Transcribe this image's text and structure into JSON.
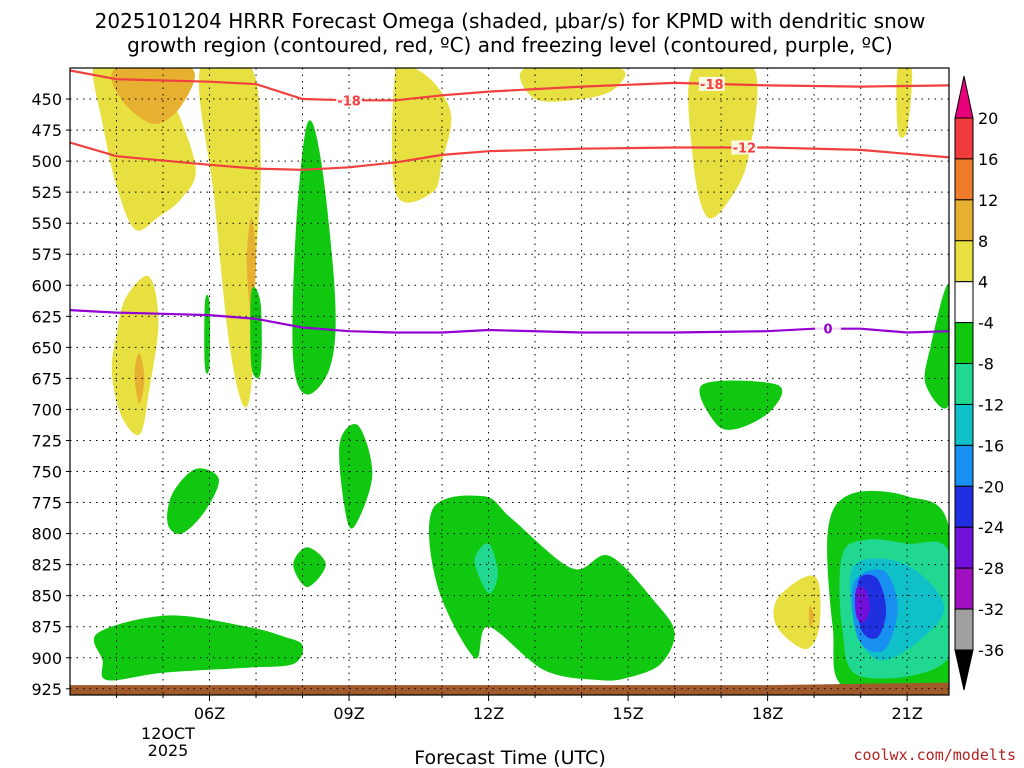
{
  "chart_data": {
    "type": "contour",
    "title_line1": "2025101204 HRRR Forecast Omega (shaded, μbar/s) for KPMD with dendritic snow",
    "title_line2": "growth region (contoured, red, ºC) and freezing level (contoured, purple, ºC)",
    "xlabel": "Forecast Time (UTC)",
    "x_tick_labels": [
      "06Z",
      "09Z",
      "12Z",
      "15Z",
      "18Z",
      "21Z"
    ],
    "x_ticks_hours": [
      6,
      9,
      12,
      15,
      18,
      21
    ],
    "xlim_hours": [
      3,
      21.9
    ],
    "date_label": [
      "12OCT",
      "2025"
    ],
    "ylabel": "",
    "y_levels_hpa": [
      450,
      475,
      500,
      525,
      550,
      575,
      600,
      625,
      650,
      675,
      700,
      725,
      750,
      775,
      800,
      825,
      850,
      875,
      900,
      925
    ],
    "ylim_hpa": [
      425,
      930
    ],
    "colorbar": {
      "labels": [
        "20",
        "16",
        "12",
        "8",
        "4",
        "-4",
        "-8",
        "-12",
        "-16",
        "-20",
        "-24",
        "-28",
        "-32",
        "-36"
      ],
      "colors": [
        "#e8007a",
        "#f03c3c",
        "#ee7c2a",
        "#e8b030",
        "#e8e040",
        "#ffffff",
        "#10c810",
        "#20d890",
        "#10c0c8",
        "#1890f0",
        "#2030e0",
        "#7010d8",
        "#a010c0",
        "#a0a0a0",
        "#000000"
      ]
    },
    "contours": [
      {
        "name": "dendritic -18",
        "label": "-18",
        "color": "#f04040",
        "hours": [
          3,
          4,
          6,
          7,
          8,
          9,
          10,
          11,
          12,
          14,
          16,
          18,
          20,
          21.9
        ],
        "pressure": [
          427,
          434,
          436,
          438,
          450,
          451,
          451,
          447,
          444,
          440,
          437,
          439,
          440,
          439
        ]
      },
      {
        "name": "dendritic -12",
        "label": "-12",
        "color": "#f04040",
        "hours": [
          3,
          4,
          6,
          7,
          8,
          9,
          10,
          11,
          12,
          14,
          16,
          18,
          20,
          21.9
        ],
        "pressure": [
          485,
          496,
          503,
          506,
          507,
          505,
          501,
          495,
          492,
          490,
          489,
          489,
          491,
          497
        ]
      },
      {
        "name": "freezing level 0",
        "label": "0",
        "color": "#9400d3",
        "hours": [
          3,
          4,
          5,
          6,
          7,
          8,
          9,
          10,
          11,
          12,
          14,
          16,
          18,
          19,
          20,
          21,
          21.9
        ],
        "pressure": [
          620,
          622,
          623,
          624,
          627,
          634,
          637,
          638,
          638,
          636,
          638,
          638,
          637,
          635,
          635,
          638,
          637
        ]
      }
    ],
    "omega_regions": [
      {
        "value": 4,
        "hours": [
          3.5,
          4.0,
          4.8,
          5.2,
          5.7,
          5.4,
          4.9,
          4.4,
          4.0,
          3.7
        ],
        "pressure": [
          425,
          425,
          425,
          450,
          505,
          530,
          545,
          555,
          520,
          470
        ]
      },
      {
        "value": 8,
        "hours": [
          4.0,
          5.6,
          5.4,
          4.8,
          4.1
        ],
        "pressure": [
          425,
          425,
          455,
          470,
          450
        ]
      },
      {
        "value": 4,
        "hours": [
          5.8,
          6.9,
          7.1,
          7.0,
          6.9,
          6.7,
          6.4,
          6.1
        ],
        "pressure": [
          425,
          425,
          500,
          580,
          680,
          695,
          640,
          530
        ]
      },
      {
        "value": 8,
        "hours": [
          6.9,
          7.0,
          6.9,
          6.8
        ],
        "pressure": [
          545,
          580,
          625,
          580
        ]
      },
      {
        "value": 4,
        "hours": [
          4.0,
          4.2,
          4.7,
          4.9,
          4.7,
          4.5,
          4.1,
          3.9
        ],
        "pressure": [
          640,
          610,
          593,
          630,
          685,
          720,
          705,
          670
        ]
      },
      {
        "value": 8,
        "hours": [
          4.4,
          4.5,
          4.6,
          4.5,
          4.4
        ],
        "pressure": [
          665,
          655,
          675,
          695,
          680
        ]
      },
      {
        "value": 4,
        "hours": [
          10.0,
          10.4,
          10.9,
          11.2,
          11.0,
          10.8,
          10.0
        ],
        "pressure": [
          425,
          425,
          440,
          465,
          500,
          525,
          525
        ]
      },
      {
        "value": 4,
        "hours": [
          12.8,
          14.8,
          14.7,
          14.0,
          13.0
        ],
        "pressure": [
          425,
          425,
          442,
          450,
          450
        ]
      },
      {
        "value": 4,
        "hours": [
          16.4,
          17.7,
          17.6,
          17.2,
          16.7,
          16.4
        ],
        "pressure": [
          425,
          425,
          495,
          530,
          545,
          500
        ]
      },
      {
        "value": 4,
        "hours": [
          20.8,
          21.1,
          21.0,
          20.8
        ],
        "pressure": [
          425,
          425,
          475,
          475
        ]
      },
      {
        "value": 4,
        "hours": [
          18.2,
          18.8,
          19.1,
          19.1,
          18.8,
          18.2
        ],
        "pressure": [
          853,
          835,
          840,
          877,
          893,
          875
        ]
      },
      {
        "value": 8,
        "hours": [
          18.9,
          19.0,
          18.9
        ],
        "pressure": [
          858,
          867,
          875
        ]
      },
      {
        "value": -4,
        "hours": [
          7.85,
          8.1,
          8.4,
          8.7,
          8.6,
          8.1,
          7.8
        ],
        "pressure": [
          560,
          470,
          500,
          610,
          665,
          688,
          660
        ]
      },
      {
        "value": -4,
        "hours": [
          6.9,
          7.1,
          7.1,
          6.9
        ],
        "pressure": [
          605,
          615,
          670,
          665
        ]
      },
      {
        "value": -4,
        "hours": [
          21.5,
          21.9,
          21.9,
          21.4
        ],
        "pressure": [
          650,
          600,
          695,
          680
        ]
      },
      {
        "value": -4,
        "hours": [
          5.9,
          6.0,
          6.0,
          5.9
        ],
        "pressure": [
          614,
          614,
          665,
          665
        ]
      },
      {
        "value": -4,
        "hours": [
          8.8,
          9.2,
          9.5,
          9.1,
          8.9
        ],
        "pressure": [
          727,
          713,
          753,
          795,
          778
        ]
      },
      {
        "value": -4,
        "hours": [
          5.2,
          5.7,
          6.2,
          5.9,
          5.4,
          5.1
        ],
        "pressure": [
          768,
          748,
          756,
          782,
          800,
          792
        ]
      },
      {
        "value": -4,
        "hours": [
          7.8,
          8.1,
          8.5,
          8.1
        ],
        "pressure": [
          825,
          811,
          825,
          843
        ]
      },
      {
        "value": -4,
        "hours": [
          3.6,
          5.1,
          6.8,
          7.6,
          8.0,
          7.8,
          6.8,
          5.0,
          3.8,
          3.7
        ],
        "pressure": [
          880,
          866,
          875,
          883,
          890,
          905,
          908,
          912,
          918,
          902
        ]
      },
      {
        "value": -4,
        "hours": [
          10.8,
          11.9,
          12.5,
          13.8,
          14.6,
          15.6,
          16.0,
          15.7,
          15.0,
          14.4,
          13.2,
          12.0,
          11.7,
          10.9
        ],
        "pressure": [
          780,
          770,
          788,
          828,
          818,
          856,
          880,
          905,
          916,
          918,
          910,
          875,
          900,
          842
        ]
      },
      {
        "value": -8,
        "hours": [
          11.7,
          12.0,
          12.2,
          12.0
        ],
        "pressure": [
          822,
          808,
          832,
          848
        ]
      },
      {
        "value": -4,
        "hours": [
          16.6,
          18.2,
          18.1,
          17.4,
          16.9
        ],
        "pressure": [
          680,
          680,
          700,
          715,
          712
        ]
      },
      {
        "value": -4,
        "hours": [
          19.3,
          19.8,
          21.0,
          21.9,
          21.9,
          19.7,
          19.4
        ],
        "pressure": [
          796,
          768,
          770,
          795,
          925,
          925,
          875
        ]
      },
      {
        "value": -8,
        "hours": [
          19.6,
          20.1,
          21.0,
          21.9,
          21.9,
          20.0,
          19.6
        ],
        "pressure": [
          818,
          805,
          808,
          815,
          900,
          915,
          875
        ]
      },
      {
        "value": -12,
        "hours": [
          19.8,
          20.4,
          21.2,
          21.8,
          21.2,
          20.4,
          19.9
        ],
        "pressure": [
          830,
          820,
          830,
          860,
          888,
          902,
          878
        ]
      },
      {
        "value": -16,
        "hours": [
          19.85,
          20.5,
          20.8,
          20.5,
          19.95
        ],
        "pressure": [
          840,
          830,
          860,
          894,
          885
        ]
      },
      {
        "value": -20,
        "hours": [
          19.95,
          20.35,
          20.55,
          20.35,
          20.0
        ],
        "pressure": [
          838,
          836,
          862,
          884,
          876
        ]
      },
      {
        "value": -24,
        "hours": [
          19.9,
          20.1,
          20.2,
          20.05,
          19.9
        ],
        "pressure": [
          845,
          845,
          860,
          872,
          865
        ]
      }
    ],
    "ground": {
      "color": "#a05a2c",
      "hours": [
        3,
        18,
        21.9
      ],
      "pressure": [
        922,
        922,
        920
      ]
    }
  },
  "credit": "coolwx.com/modelts"
}
